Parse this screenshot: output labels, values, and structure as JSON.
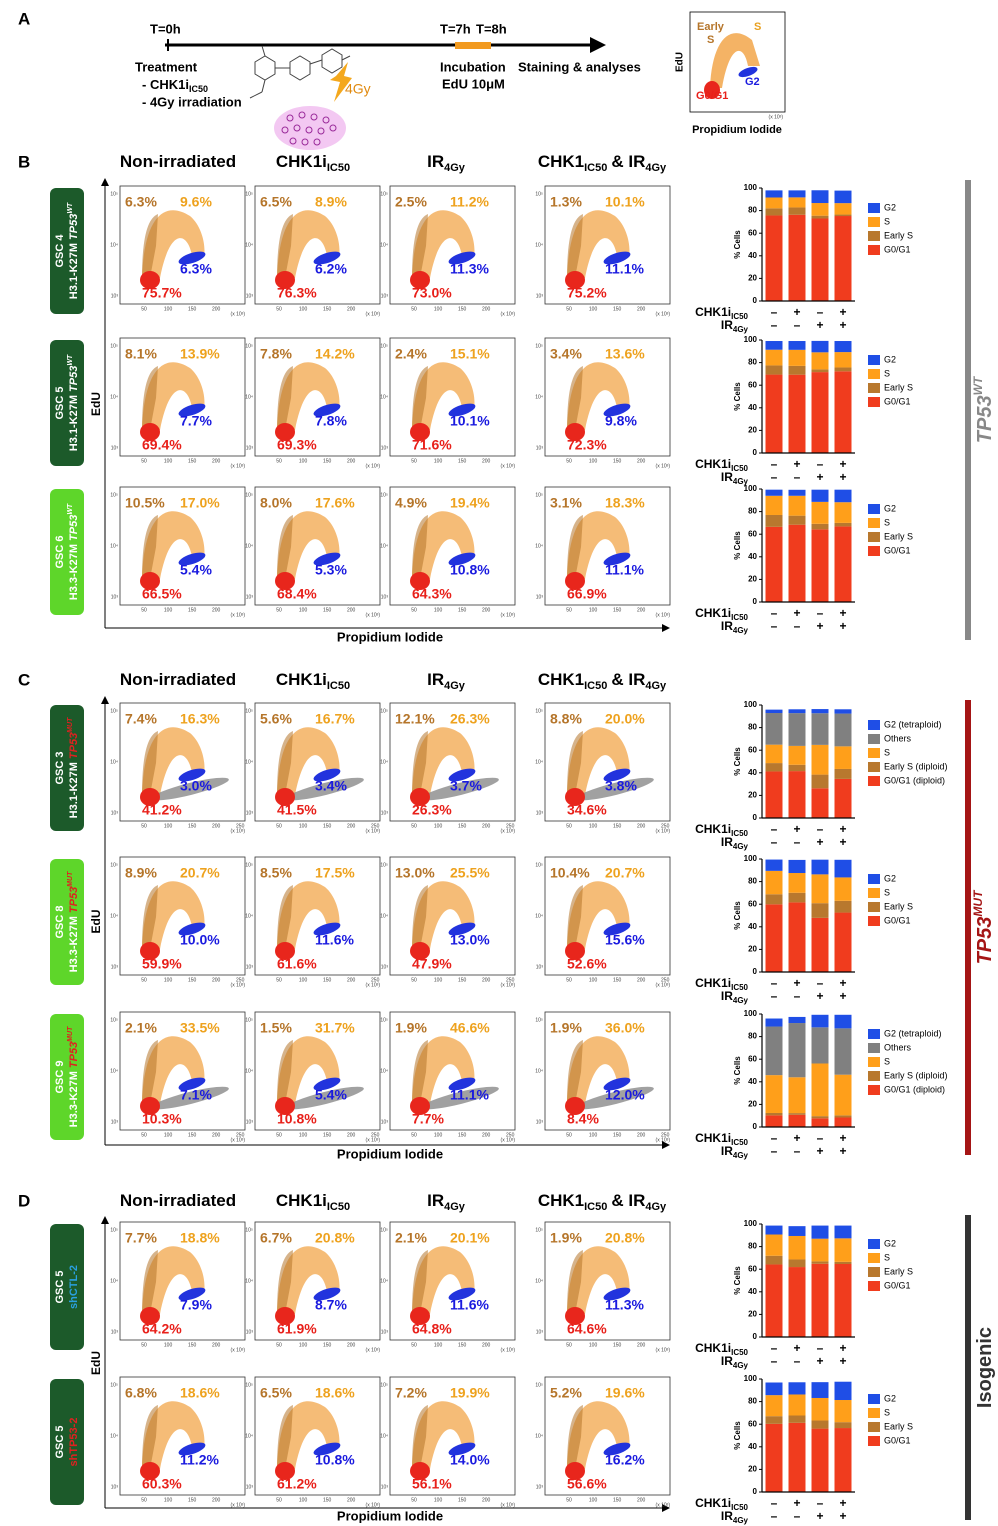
{
  "panel_a": {
    "label": "A",
    "t0": "T=0h",
    "t7": "T=7h",
    "t8": "T=8h",
    "treatment": "Treatment",
    "chk1": "- CHK1i",
    "chk1_sub": "IC50",
    "irr": "- 4Gy irradiation",
    "dose": "4Gy",
    "incubation": "Incubation",
    "edu": "EdU 10μM",
    "staining": "Staining & analyses",
    "mini": {
      "early": "Early",
      "early2": "S",
      "s": "S",
      "g2": "G2",
      "g0_g1": "G0/G1",
      "y_label": "EdU",
      "x_label": "Propidium Iodide",
      "x_unit": "(x 10³)"
    }
  },
  "headers": [
    {
      "text": "Non-irradiated"
    },
    {
      "text": "CHK1i",
      "sub": "IC50"
    },
    {
      "text": "IR",
      "sub": "4Gy"
    },
    {
      "text": "CHK1",
      "sub": "IC50",
      "text2": "& IR",
      "sub2": "4Gy"
    }
  ],
  "flow_axes": {
    "y_label": "EdU",
    "x_label": "Propidium Iodide",
    "y_ticks": [
      "10⁵",
      "10⁴",
      "10³"
    ],
    "x_unit": "(x 10³)"
  },
  "treatments": [
    {
      "name": "CHK1i",
      "sub": "IC50",
      "signs": [
        "–",
        "+",
        "–",
        "+"
      ]
    },
    {
      "name": "IR",
      "sub": "4Gy",
      "signs": [
        "–",
        "–",
        "+",
        "+"
      ]
    }
  ],
  "sections": [
    {
      "label": "B",
      "x_ticks": [
        "50",
        "100",
        "150",
        "200"
      ],
      "rows": [
        {
          "gsc": "GSC 4",
          "line": "H3.1-K27M",
          "gene": "TP53",
          "sup": "WT",
          "gene_color": "#ffffff",
          "box_color": "#1c5a2a",
          "plots": [
            {
              "early_s": "6.3%",
              "s": "9.6%",
              "g2": "6.3%",
              "g0_g1": "75.7%"
            },
            {
              "early_s": "6.5%",
              "s": "8.9%",
              "g2": "6.2%",
              "g0_g1": "76.3%"
            },
            {
              "early_s": "2.5%",
              "s": "11.2%",
              "g2": "11.3%",
              "g0_g1": "73.0%"
            },
            {
              "early_s": "1.3%",
              "s": "10.1%",
              "g2": "11.1%",
              "g0_g1": "75.2%"
            }
          ]
        },
        {
          "gsc": "GSC 5",
          "line": "H3.1-K27M",
          "gene": "TP53",
          "sup": "WT",
          "gene_color": "#ffffff",
          "box_color": "#1c5a2a",
          "plots": [
            {
              "early_s": "8.1%",
              "s": "13.9%",
              "g2": "7.7%",
              "g0_g1": "69.4%"
            },
            {
              "early_s": "7.8%",
              "s": "14.2%",
              "g2": "7.8%",
              "g0_g1": "69.3%"
            },
            {
              "early_s": "2.4%",
              "s": "15.1%",
              "g2": "10.1%",
              "g0_g1": "71.6%"
            },
            {
              "early_s": "3.4%",
              "s": "13.6%",
              "g2": "9.8%",
              "g0_g1": "72.3%"
            }
          ]
        },
        {
          "gsc": "GSC 6",
          "line": "H3.3-K27M",
          "gene": "TP53",
          "sup": "WT",
          "gene_color": "#ffffff",
          "box_color": "#5ed62a",
          "plots": [
            {
              "early_s": "10.5%",
              "s": "17.0%",
              "g2": "5.4%",
              "g0_g1": "66.5%"
            },
            {
              "early_s": "8.0%",
              "s": "17.6%",
              "g2": "5.3%",
              "g0_g1": "68.4%"
            },
            {
              "early_s": "4.9%",
              "s": "19.4%",
              "g2": "10.8%",
              "g0_g1": "64.3%"
            },
            {
              "early_s": "3.1%",
              "s": "18.3%",
              "g2": "11.1%",
              "g0_g1": "66.9%"
            }
          ]
        }
      ]
    },
    {
      "label": "C",
      "x_ticks": [
        "50",
        "100",
        "150",
        "200",
        "250"
      ],
      "rows": [
        {
          "gsc": "GSC 3",
          "line": "H3.1-K27M",
          "gene": "TP53",
          "sup": "MUT",
          "gene_color": "#e02020",
          "box_color": "#1c5a2a",
          "plots": [
            {
              "early_s": "7.4%",
              "s": "16.3%",
              "g2": "3.0%",
              "g0_g1": "41.2%"
            },
            {
              "early_s": "5.6%",
              "s": "16.7%",
              "g2": "3.4%",
              "g0_g1": "41.5%"
            },
            {
              "early_s": "12.1%",
              "s": "26.3%",
              "g2": "3.7%",
              "g0_g1": "26.3%"
            },
            {
              "early_s": "8.8%",
              "s": "20.0%",
              "g2": "3.8%",
              "g0_g1": "34.6%"
            }
          ]
        },
        {
          "gsc": "GSC 8",
          "line": "H3.3-K27M",
          "gene": "TP53",
          "sup": "MUT",
          "gene_color": "#e02020",
          "box_color": "#5ed62a",
          "plots": [
            {
              "early_s": "8.9%",
              "s": "20.7%",
              "g2": "10.0%",
              "g0_g1": "59.9%"
            },
            {
              "early_s": "8.5%",
              "s": "17.5%",
              "g2": "11.6%",
              "g0_g1": "61.6%"
            },
            {
              "early_s": "13.0%",
              "s": "25.5%",
              "g2": "13.0%",
              "g0_g1": "47.9%"
            },
            {
              "early_s": "10.4%",
              "s": "20.7%",
              "g2": "15.6%",
              "g0_g1": "52.6%"
            }
          ]
        },
        {
          "gsc": "GSC 9",
          "line": "H3.3-K27M",
          "gene": "TP53",
          "sup": "MUT",
          "gene_color": "#e02020",
          "box_color": "#5ed62a",
          "plots": [
            {
              "early_s": "2.1%",
              "s": "33.5%",
              "g2": "7.1%",
              "g0_g1": "10.3%"
            },
            {
              "early_s": "1.5%",
              "s": "31.7%",
              "g2": "5.4%",
              "g0_g1": "10.8%"
            },
            {
              "early_s": "1.9%",
              "s": "46.6%",
              "g2": "11.1%",
              "g0_g1": "7.7%"
            },
            {
              "early_s": "1.9%",
              "s": "36.0%",
              "g2": "12.0%",
              "g0_g1": "8.4%"
            }
          ]
        }
      ]
    },
    {
      "label": "D",
      "x_ticks": [
        "50",
        "100",
        "150",
        "200"
      ],
      "rows": [
        {
          "gsc": "GSC 5",
          "line": "shCTL-2",
          "line_color": "#2aa0e0",
          "box_color": "#1c5a2a",
          "plots": [
            {
              "early_s": "7.7%",
              "s": "18.8%",
              "g2": "7.9%",
              "g0_g1": "64.2%"
            },
            {
              "early_s": "6.7%",
              "s": "20.8%",
              "g2": "8.7%",
              "g0_g1": "61.9%"
            },
            {
              "early_s": "2.1%",
              "s": "20.1%",
              "g2": "11.6%",
              "g0_g1": "64.8%"
            },
            {
              "early_s": "1.9%",
              "s": "20.8%",
              "g2": "11.3%",
              "g0_g1": "64.6%"
            }
          ]
        },
        {
          "gsc": "GSC 5",
          "line": "shTP53-2",
          "line_color": "#e02020",
          "box_color": "#1c5a2a",
          "plots": [
            {
              "early_s": "6.8%",
              "s": "18.6%",
              "g2": "11.2%",
              "g0_g1": "60.3%"
            },
            {
              "early_s": "6.5%",
              "s": "18.6%",
              "g2": "10.8%",
              "g0_g1": "61.2%"
            },
            {
              "early_s": "7.2%",
              "s": "19.9%",
              "g2": "14.0%",
              "g0_g1": "56.1%"
            },
            {
              "early_s": "5.2%",
              "s": "19.6%",
              "g2": "16.2%",
              "g0_g1": "56.6%"
            }
          ]
        }
      ]
    }
  ],
  "groups": [
    {
      "text": "TP53",
      "sup": "WT",
      "color": "#888888"
    },
    {
      "text": "TP53",
      "sup": "MUT",
      "color": "#a51515"
    },
    {
      "text": "Isogenic",
      "color": "#333333"
    }
  ],
  "chart_data": [
    {
      "type": "bar",
      "stacked": true,
      "y_label": "% Cells",
      "ylim": [
        0,
        100
      ],
      "yticks": [
        0,
        20,
        40,
        60,
        80,
        100
      ],
      "categories": [
        null,
        null,
        null,
        null
      ],
      "series": [
        {
          "name": "G0/G1",
          "color": "#f03c1e",
          "values": [
            75.7,
            76.3,
            73.0,
            75.2
          ]
        },
        {
          "name": "Early S",
          "color": "#b8782e",
          "values": [
            6.3,
            6.5,
            2.5,
            1.3
          ]
        },
        {
          "name": "S",
          "color": "#ff9f1a",
          "values": [
            9.6,
            8.9,
            11.2,
            10.1
          ]
        },
        {
          "name": "G2",
          "color": "#1f4ee6",
          "values": [
            6.3,
            6.2,
            11.3,
            11.1
          ]
        }
      ]
    },
    {
      "type": "bar",
      "stacked": true,
      "y_label": "% Cells",
      "ylim": [
        0,
        100
      ],
      "yticks": [
        0,
        20,
        40,
        60,
        80,
        100
      ],
      "categories": [
        null,
        null,
        null,
        null
      ],
      "series": [
        {
          "name": "G0/G1",
          "color": "#f03c1e",
          "values": [
            69.4,
            69.3,
            71.6,
            72.3
          ]
        },
        {
          "name": "Early S",
          "color": "#b8782e",
          "values": [
            8.1,
            7.8,
            2.4,
            3.4
          ]
        },
        {
          "name": "S",
          "color": "#ff9f1a",
          "values": [
            13.9,
            14.2,
            15.1,
            13.6
          ]
        },
        {
          "name": "G2",
          "color": "#1f4ee6",
          "values": [
            7.7,
            7.8,
            10.1,
            9.8
          ]
        }
      ]
    },
    {
      "type": "bar",
      "stacked": true,
      "y_label": "% Cells",
      "ylim": [
        0,
        100
      ],
      "yticks": [
        0,
        20,
        40,
        60,
        80,
        100
      ],
      "categories": [
        null,
        null,
        null,
        null
      ],
      "series": [
        {
          "name": "G0/G1",
          "color": "#f03c1e",
          "values": [
            66.5,
            68.4,
            64.3,
            66.9
          ]
        },
        {
          "name": "Early S",
          "color": "#b8782e",
          "values": [
            10.5,
            8.0,
            4.9,
            3.1
          ]
        },
        {
          "name": "S",
          "color": "#ff9f1a",
          "values": [
            17.0,
            17.6,
            19.4,
            18.3
          ]
        },
        {
          "name": "G2",
          "color": "#1f4ee6",
          "values": [
            5.4,
            5.3,
            10.8,
            11.1
          ]
        }
      ]
    },
    {
      "type": "bar",
      "stacked": true,
      "y_label": "% Cells",
      "ylim": [
        0,
        100
      ],
      "yticks": [
        0,
        20,
        40,
        60,
        80,
        100
      ],
      "categories": [
        null,
        null,
        null,
        null
      ],
      "series": [
        {
          "name": "G0/G1 (diploid)",
          "color": "#f03c1e",
          "values": [
            41.2,
            41.5,
            26.3,
            34.6
          ]
        },
        {
          "name": "Early S (diploid)",
          "color": "#b8782e",
          "values": [
            7.4,
            5.6,
            12.1,
            8.8
          ]
        },
        {
          "name": "S",
          "color": "#ff9f1a",
          "values": [
            16.3,
            16.7,
            26.3,
            20.0
          ]
        },
        {
          "name": "Others",
          "color": "#808080",
          "values": [
            28,
            29,
            28,
            29
          ]
        },
        {
          "name": "G2 (tetraploid)",
          "color": "#1f4ee6",
          "values": [
            3.0,
            3.4,
            3.7,
            3.8
          ]
        }
      ]
    },
    {
      "type": "bar",
      "stacked": true,
      "y_label": "% Cells",
      "ylim": [
        0,
        100
      ],
      "yticks": [
        0,
        20,
        40,
        60,
        80,
        100
      ],
      "categories": [
        null,
        null,
        null,
        null
      ],
      "series": [
        {
          "name": "G0/G1",
          "color": "#f03c1e",
          "values": [
            59.9,
            61.6,
            47.9,
            52.6
          ]
        },
        {
          "name": "Early S",
          "color": "#b8782e",
          "values": [
            8.9,
            8.5,
            13.0,
            10.4
          ]
        },
        {
          "name": "S",
          "color": "#ff9f1a",
          "values": [
            20.7,
            17.5,
            25.5,
            20.7
          ]
        },
        {
          "name": "G2",
          "color": "#1f4ee6",
          "values": [
            10.0,
            11.6,
            13.0,
            15.6
          ]
        }
      ]
    },
    {
      "type": "bar",
      "stacked": true,
      "y_label": "% Cells",
      "ylim": [
        0,
        100
      ],
      "yticks": [
        0,
        20,
        40,
        60,
        80,
        100
      ],
      "categories": [
        null,
        null,
        null,
        null
      ],
      "series": [
        {
          "name": "G0/G1 (diploid)",
          "color": "#f03c1e",
          "values": [
            10.3,
            10.8,
            7.7,
            8.4
          ]
        },
        {
          "name": "Early S (diploid)",
          "color": "#b8782e",
          "values": [
            2.1,
            1.5,
            1.9,
            1.9
          ]
        },
        {
          "name": "S",
          "color": "#ff9f1a",
          "values": [
            33.5,
            31.7,
            46.6,
            36.0
          ]
        },
        {
          "name": "Others",
          "color": "#808080",
          "values": [
            43,
            48,
            32,
            41
          ]
        },
        {
          "name": "G2 (tetraploid)",
          "color": "#1f4ee6",
          "values": [
            7.1,
            5.4,
            11.1,
            12.0
          ]
        }
      ]
    },
    {
      "type": "bar",
      "stacked": true,
      "y_label": "% Cells",
      "ylim": [
        0,
        100
      ],
      "yticks": [
        0,
        20,
        40,
        60,
        80,
        100
      ],
      "categories": [
        null,
        null,
        null,
        null
      ],
      "series": [
        {
          "name": "G0/G1",
          "color": "#f03c1e",
          "values": [
            64.2,
            61.9,
            64.8,
            64.6
          ]
        },
        {
          "name": "Early S",
          "color": "#b8782e",
          "values": [
            7.7,
            6.7,
            2.1,
            1.9
          ]
        },
        {
          "name": "S",
          "color": "#ff9f1a",
          "values": [
            18.8,
            20.8,
            20.1,
            20.8
          ]
        },
        {
          "name": "G2",
          "color": "#1f4ee6",
          "values": [
            7.9,
            8.7,
            11.6,
            11.3
          ]
        }
      ]
    },
    {
      "type": "bar",
      "stacked": true,
      "y_label": "% Cells",
      "ylim": [
        0,
        100
      ],
      "yticks": [
        0,
        20,
        40,
        60,
        80,
        100
      ],
      "categories": [
        null,
        null,
        null,
        null
      ],
      "series": [
        {
          "name": "G0/G1",
          "color": "#f03c1e",
          "values": [
            60.3,
            61.2,
            56.1,
            56.6
          ]
        },
        {
          "name": "Early S",
          "color": "#b8782e",
          "values": [
            6.8,
            6.5,
            7.2,
            5.2
          ]
        },
        {
          "name": "S",
          "color": "#ff9f1a",
          "values": [
            18.6,
            18.6,
            19.9,
            19.6
          ]
        },
        {
          "name": "G2",
          "color": "#1f4ee6",
          "values": [
            11.2,
            10.8,
            14.0,
            16.2
          ]
        }
      ]
    }
  ]
}
